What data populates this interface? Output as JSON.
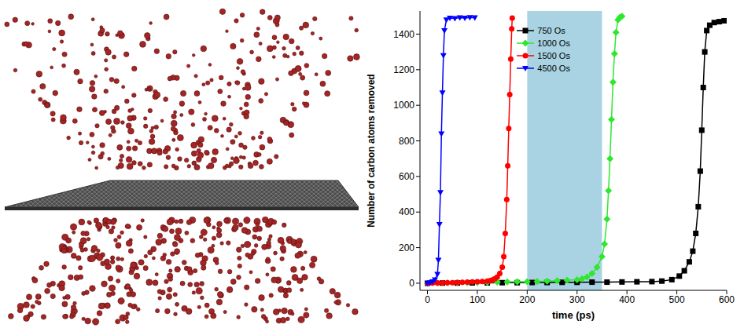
{
  "chart_data": {
    "type": "line",
    "xlabel": "time (ps)",
    "ylabel": "Number of carbon atoms removed",
    "xlim": [
      -15,
      600
    ],
    "xticks": [
      0,
      100,
      200,
      300,
      400,
      500,
      600
    ],
    "ylim": [
      -40,
      1530
    ],
    "yticks": [
      0,
      200,
      400,
      600,
      800,
      1000,
      1200,
      1400
    ],
    "legend": "top",
    "highlight": {
      "x": [
        200,
        350
      ],
      "color": "#a9d3e3"
    },
    "series": [
      {
        "name": "750 Os",
        "color": "#000000",
        "marker": "square",
        "x": [
          0,
          30,
          60,
          90,
          120,
          150,
          180,
          210,
          240,
          270,
          300,
          330,
          360,
          390,
          420,
          450,
          470,
          490,
          505,
          515,
          525,
          532,
          538,
          543,
          547,
          550,
          553,
          556,
          560,
          566,
          575,
          585,
          595
        ],
        "values": [
          0,
          1,
          1,
          2,
          2,
          3,
          3,
          4,
          4,
          5,
          5,
          6,
          6,
          7,
          8,
          9,
          12,
          20,
          40,
          70,
          120,
          180,
          280,
          430,
          630,
          860,
          1100,
          1300,
          1420,
          1450,
          1465,
          1470,
          1475
        ]
      },
      {
        "name": "1000 Os",
        "color": "#2ee82e",
        "marker": "diamond",
        "x": [
          0,
          20,
          40,
          60,
          80,
          100,
          120,
          140,
          160,
          180,
          200,
          220,
          240,
          260,
          280,
          300,
          310,
          320,
          330,
          340,
          350,
          355,
          360,
          363,
          366,
          369,
          372,
          375,
          378,
          382,
          386,
          390
        ],
        "values": [
          0,
          1,
          2,
          3,
          3,
          4,
          5,
          6,
          7,
          8,
          9,
          10,
          12,
          14,
          17,
          20,
          25,
          35,
          55,
          90,
          150,
          220,
          360,
          520,
          700,
          920,
          1130,
          1290,
          1410,
          1480,
          1495,
          1500
        ]
      },
      {
        "name": "1500 Os",
        "color": "#ff0000",
        "marker": "circle",
        "x": [
          0,
          10,
          20,
          30,
          40,
          50,
          60,
          70,
          80,
          90,
          100,
          110,
          120,
          125,
          130,
          135,
          140,
          145,
          150,
          153,
          156,
          159,
          161,
          163,
          165,
          167,
          169,
          170
        ],
        "values": [
          0,
          1,
          2,
          2,
          3,
          3,
          4,
          5,
          6,
          7,
          8,
          10,
          12,
          14,
          18,
          25,
          35,
          55,
          90,
          150,
          280,
          470,
          660,
          870,
          1060,
          1260,
          1430,
          1490
        ]
      },
      {
        "name": "4500 Os",
        "color": "#0000ff",
        "marker": "triangle-down",
        "x": [
          0,
          5,
          10,
          15,
          20,
          22,
          24,
          26,
          28,
          30,
          32,
          34,
          38,
          45,
          55,
          65,
          75,
          85,
          95
        ],
        "values": [
          0,
          3,
          8,
          20,
          50,
          130,
          330,
          510,
          840,
          1070,
          1280,
          1420,
          1480,
          1490,
          1488,
          1492,
          1490,
          1494,
          1492
        ]
      }
    ]
  }
}
